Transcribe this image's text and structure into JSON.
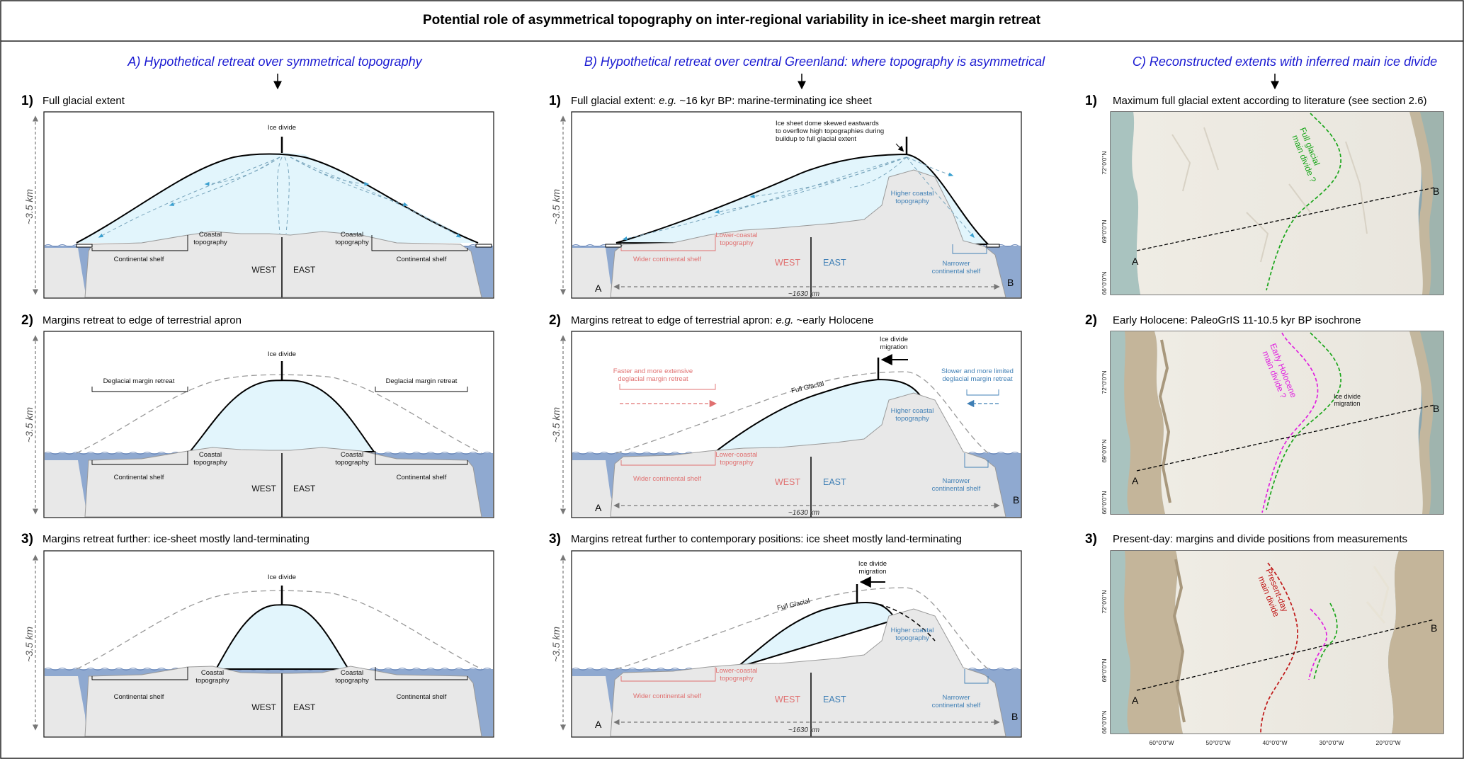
{
  "title": "Potential role of asymmetrical topography on inter-regional variability in ice-sheet margin retreat",
  "colors": {
    "ice": "#e2f5fc",
    "sea": "#8fa9d0",
    "land": "#e8e8e8",
    "column_title": "#1a1ad2",
    "west_red": "#e07070",
    "east_blue": "#3f7fb5",
    "full_glacial_divide": "#1aa61a",
    "holocene_divide": "#e020e0",
    "present_divide": "#c01818"
  },
  "columns": {
    "a": {
      "label": "A)",
      "title": "Hypothetical retreat over symmetrical topography"
    },
    "b": {
      "label": "B)",
      "title": "Hypothetical retreat over central Greenland: where topography is asymmetrical"
    },
    "c": {
      "label": "C)",
      "title": "Reconstructed extents with inferred main ice divide"
    }
  },
  "panel_numbers": {
    "p1": "1)",
    "p2": "2)",
    "p3": "3)"
  },
  "panel_headings": {
    "a1": "Full glacial extent",
    "a2": "Margins retreat to edge of terrestrial apron",
    "a3": "Margins retreat further: ice-sheet mostly land-terminating",
    "b1": {
      "prefix": "Full glacial extent: ",
      "eg": "e.g.",
      "rest": " ~16 kyr BP: marine-terminating ice sheet"
    },
    "b2": {
      "prefix": "Margins retreat to edge of terrestrial apron: ",
      "eg": "e.g.",
      "rest": " ~early Holocene"
    },
    "b3": "Margins retreat further to contemporary positions: ice sheet mostly land-terminating",
    "c1": "Maximum full glacial extent according to literature (see section 2.6)",
    "c2": "Early Holocene: PaleoGrIS 11-10.5 kyr BP isochrone",
    "c3": "Present-day: margins and divide positions from measurements"
  },
  "labels": {
    "ice_divide": "Ice divide",
    "continental_shelf": "Continental shelf",
    "coastal_topo_1": "Coastal",
    "coastal_topo_2": "topography",
    "west": "WEST",
    "east": "EAST",
    "height": "~3.5 km",
    "deglacial_retreat": "Deglacial margin retreat",
    "dome_note": [
      "Ice sheet dome skewed eastwards",
      "to overflow high topographies during",
      "buildup to full glacial extent"
    ],
    "higher_coastal_1": "Higher coastal",
    "higher_coastal_2": "topography",
    "lower_coastal_1": "Lower-coastal",
    "lower_coastal_2": "topography",
    "wider_shelf": "Wider continental shelf",
    "narrower_shelf_1": "Narrower",
    "narrower_shelf_2": "continental shelf",
    "distance": "~1630 km",
    "point_a": "A",
    "point_b": "B",
    "divide_migration_1": "Ice divide",
    "divide_migration_2": "migration",
    "full_glacial": "Full Glacial",
    "faster_retreat_1": "Faster and more extensive",
    "faster_retreat_2": "deglacial margin retreat",
    "slower_retreat_1": "Slower and more limited",
    "slower_retreat_2": "deglacial margin retreat"
  },
  "maps": {
    "lat_ticks": [
      "72°0'0\"N",
      "69°0'0\"N",
      "66°0'0\"N"
    ],
    "lon_ticks": [
      "60°0'0\"W",
      "50°0'0\"W",
      "40°0'0\"W",
      "30°0'0\"W",
      "20°0'0\"W"
    ],
    "full_glacial_divide": [
      "Full glacial",
      "main divide ?"
    ],
    "holocene_divide": [
      "Early Holocene",
      "main divide ?"
    ],
    "present_divide": [
      "Present-day",
      "main divide"
    ],
    "ice_divide_migration": [
      "Ice divide",
      "migration"
    ]
  }
}
